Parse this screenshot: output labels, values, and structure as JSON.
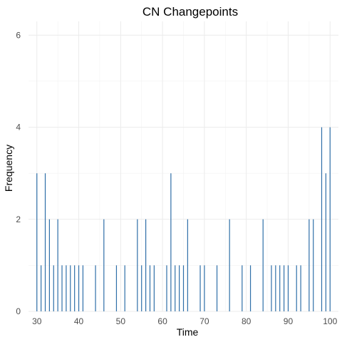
{
  "chart_data": {
    "type": "bar",
    "title": "CN Changepoints",
    "xlabel": "Time",
    "ylabel": "Frequency",
    "xlim": [
      28,
      102
    ],
    "ylim": [
      0,
      6.3
    ],
    "x_ticks": [
      30,
      40,
      50,
      60,
      70,
      80,
      90,
      100
    ],
    "y_ticks": [
      0,
      2,
      4,
      6
    ],
    "grid": true,
    "bar_color": "#2f6fa8",
    "grid_color": "#ebebeb",
    "points": [
      {
        "x": 30,
        "y": 3
      },
      {
        "x": 31,
        "y": 1
      },
      {
        "x": 32,
        "y": 3
      },
      {
        "x": 33,
        "y": 2
      },
      {
        "x": 34,
        "y": 1
      },
      {
        "x": 35,
        "y": 2
      },
      {
        "x": 36,
        "y": 1
      },
      {
        "x": 37,
        "y": 1
      },
      {
        "x": 38,
        "y": 1
      },
      {
        "x": 39,
        "y": 1
      },
      {
        "x": 40,
        "y": 1
      },
      {
        "x": 41,
        "y": 1
      },
      {
        "x": 44,
        "y": 1
      },
      {
        "x": 46,
        "y": 2
      },
      {
        "x": 49,
        "y": 1
      },
      {
        "x": 51,
        "y": 1
      },
      {
        "x": 54,
        "y": 2
      },
      {
        "x": 55,
        "y": 1
      },
      {
        "x": 56,
        "y": 2
      },
      {
        "x": 57,
        "y": 1
      },
      {
        "x": 58,
        "y": 1
      },
      {
        "x": 61,
        "y": 1
      },
      {
        "x": 62,
        "y": 3
      },
      {
        "x": 63,
        "y": 1
      },
      {
        "x": 64,
        "y": 1
      },
      {
        "x": 65,
        "y": 1
      },
      {
        "x": 66,
        "y": 2
      },
      {
        "x": 69,
        "y": 1
      },
      {
        "x": 70,
        "y": 1
      },
      {
        "x": 73,
        "y": 1
      },
      {
        "x": 76,
        "y": 2
      },
      {
        "x": 79,
        "y": 1
      },
      {
        "x": 81,
        "y": 1
      },
      {
        "x": 84,
        "y": 2
      },
      {
        "x": 86,
        "y": 1
      },
      {
        "x": 87,
        "y": 1
      },
      {
        "x": 88,
        "y": 1
      },
      {
        "x": 89,
        "y": 1
      },
      {
        "x": 90,
        "y": 1
      },
      {
        "x": 92,
        "y": 1
      },
      {
        "x": 93,
        "y": 1
      },
      {
        "x": 95,
        "y": 2
      },
      {
        "x": 96,
        "y": 2
      },
      {
        "x": 98,
        "y": 4
      },
      {
        "x": 99,
        "y": 3
      },
      {
        "x": 100,
        "y": 4
      }
    ]
  }
}
